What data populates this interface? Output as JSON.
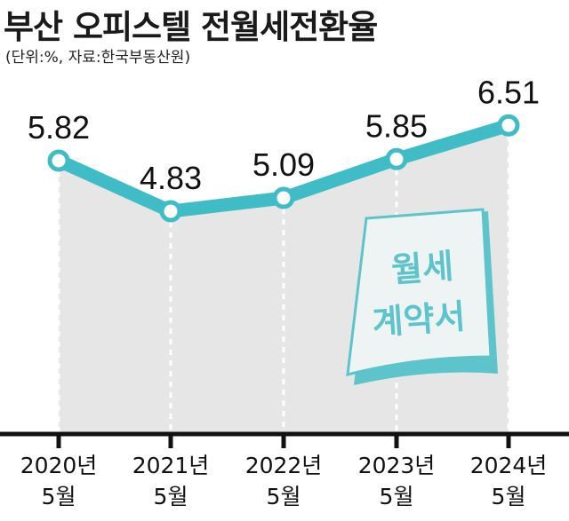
{
  "header": {
    "title": "부산 오피스텔 전월세전환율",
    "subtitle": "(단위:%, 자료:한국부동산원)"
  },
  "note": {
    "line1": "월세",
    "line2": "계약서",
    "accent_color": "#5cc4ca"
  },
  "colors": {
    "line": "#3fbcc6",
    "area": "#e6e6e6",
    "axis": "#111111"
  },
  "chart_data": {
    "type": "line",
    "title": "부산 오피스텔 전월세전환율",
    "subtitle": "(단위:%, 자료:한국부동산원)",
    "categories": [
      "2020년|5월",
      "2021년|5월",
      "2022년|5월",
      "2023년|5월",
      "2024년|5월"
    ],
    "values": [
      5.82,
      4.83,
      5.09,
      5.85,
      6.51
    ],
    "value_labels": [
      "5.82",
      "4.83",
      "5.09",
      "5.85",
      "6.51"
    ],
    "grid": false,
    "legend": "none"
  }
}
